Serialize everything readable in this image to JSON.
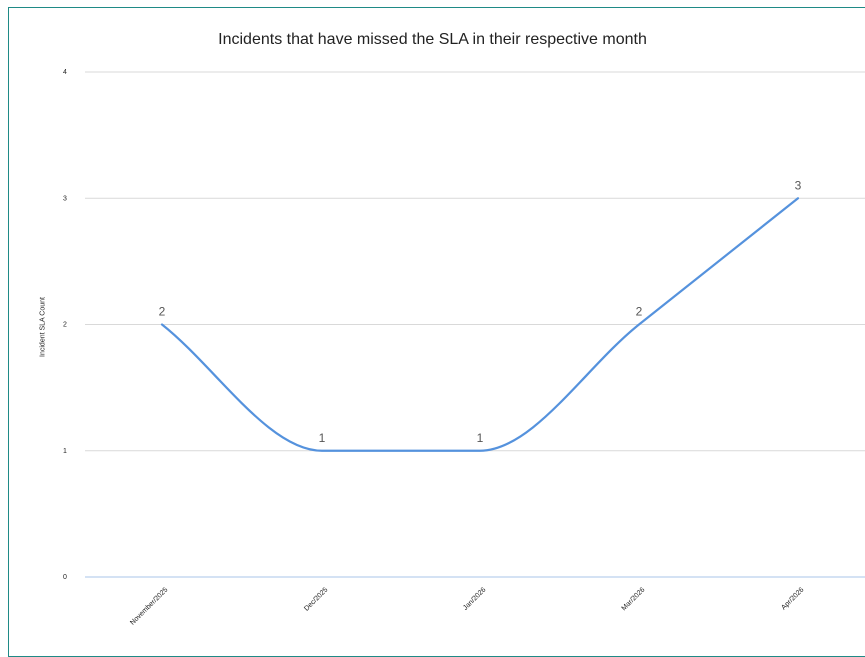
{
  "chart_data": {
    "type": "line",
    "title": "Incidents that have missed the SLA in their respective month",
    "xlabel": "",
    "ylabel": "Incident SLA Count",
    "categories": [
      "November/2025",
      "Dec/2025",
      "Jan/2026",
      "Mar/2026",
      "Apr/2026"
    ],
    "series": [
      {
        "values": [
          2,
          1,
          1,
          2,
          3
        ]
      }
    ],
    "ylim": [
      0,
      4
    ],
    "yticks": [
      0,
      1,
      2,
      3,
      4
    ],
    "grid": true,
    "legend": "none",
    "line_smooth": true,
    "colors": {
      "line": "#5592dd",
      "grid": "#d9d9d9",
      "axis": "#a9c4e8",
      "frame": "#1f8a86"
    }
  }
}
